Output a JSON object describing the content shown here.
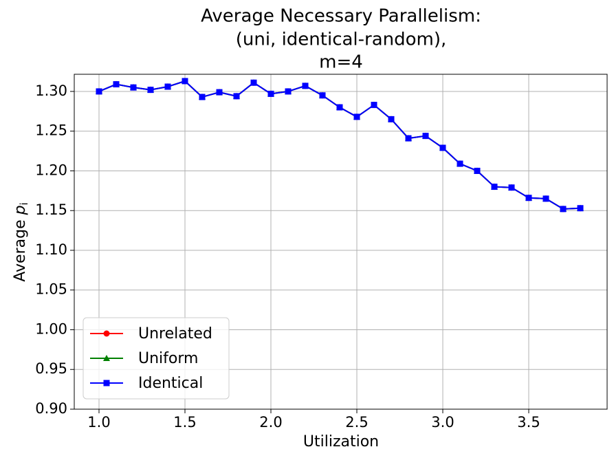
{
  "chart_data": {
    "type": "line",
    "title": [
      "Average Necessary Parallelism:",
      "(uni, identical-random),",
      "m=4"
    ],
    "xlabel": "Utilization",
    "ylabel": [
      "Average",
      "p",
      "i"
    ],
    "x": [
      1.0,
      1.1,
      1.2,
      1.3,
      1.4,
      1.5,
      1.6,
      1.7,
      1.8,
      1.9,
      2.0,
      2.1,
      2.2,
      2.3,
      2.4,
      2.5,
      2.6,
      2.7,
      2.8,
      2.9,
      3.0,
      3.1,
      3.2,
      3.3,
      3.4,
      3.5,
      3.6,
      3.7,
      3.8
    ],
    "series": [
      {
        "name": "Unrelated",
        "color": "#ff0000",
        "marker": "circle",
        "values": [
          1.3,
          1.309,
          1.305,
          1.302,
          1.306,
          1.313,
          1.293,
          1.299,
          1.294,
          1.311,
          1.297,
          1.3,
          1.307,
          1.295,
          1.28,
          1.268,
          1.283,
          1.265,
          1.241,
          1.244,
          1.229,
          1.209,
          1.2,
          1.18,
          1.179,
          1.166,
          1.165,
          1.152,
          1.153
        ]
      },
      {
        "name": "Uniform",
        "color": "#008000",
        "marker": "triangle",
        "values": [
          1.3,
          1.309,
          1.305,
          1.302,
          1.306,
          1.313,
          1.293,
          1.299,
          1.294,
          1.311,
          1.297,
          1.3,
          1.307,
          1.295,
          1.28,
          1.268,
          1.283,
          1.265,
          1.241,
          1.244,
          1.229,
          1.209,
          1.2,
          1.18,
          1.179,
          1.166,
          1.165,
          1.152,
          1.153
        ]
      },
      {
        "name": "Identical",
        "color": "#0000ff",
        "marker": "square",
        "values": [
          1.3,
          1.309,
          1.305,
          1.302,
          1.306,
          1.313,
          1.293,
          1.299,
          1.294,
          1.311,
          1.297,
          1.3,
          1.307,
          1.295,
          1.28,
          1.268,
          1.283,
          1.265,
          1.241,
          1.244,
          1.229,
          1.209,
          1.2,
          1.18,
          1.179,
          1.166,
          1.165,
          1.152,
          1.153
        ]
      }
    ],
    "xlim": [
      0.856,
      3.956
    ],
    "ylim": [
      0.9,
      1.3216
    ],
    "xticks": [
      {
        "value": 1.0,
        "label": "1.0"
      },
      {
        "value": 1.5,
        "label": "1.5"
      },
      {
        "value": 2.0,
        "label": "2.0"
      },
      {
        "value": 2.5,
        "label": "2.5"
      },
      {
        "value": 3.0,
        "label": "3.0"
      },
      {
        "value": 3.5,
        "label": "3.5"
      }
    ],
    "yticks": [
      {
        "value": 0.9,
        "label": "0.90"
      },
      {
        "value": 0.95,
        "label": "0.95"
      },
      {
        "value": 1.0,
        "label": "1.00"
      },
      {
        "value": 1.05,
        "label": "1.05"
      },
      {
        "value": 1.1,
        "label": "1.10"
      },
      {
        "value": 1.15,
        "label": "1.15"
      },
      {
        "value": 1.2,
        "label": "1.20"
      },
      {
        "value": 1.25,
        "label": "1.25"
      },
      {
        "value": 1.3,
        "label": "1.30"
      }
    ],
    "grid": true,
    "legend": "lower left"
  }
}
